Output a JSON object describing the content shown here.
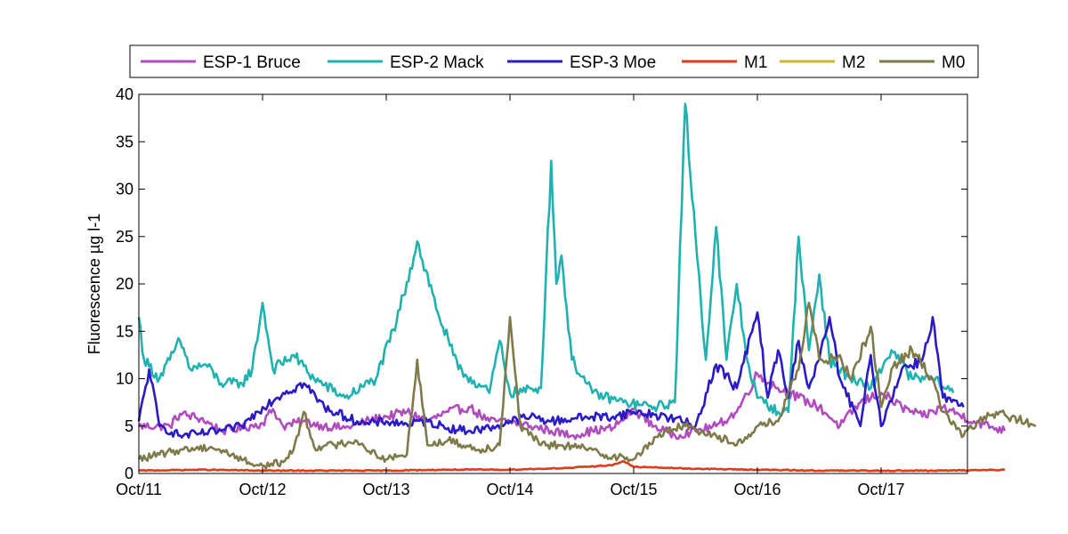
{
  "chart_data": {
    "type": "line",
    "title": "",
    "xlabel": "",
    "ylabel": "Fluorescence µg l-1",
    "xlim": [
      "2012-10-11",
      "2012-10-18 06:00"
    ],
    "ylim": [
      0,
      40
    ],
    "x_ticks": [
      "Oct/11",
      "Oct/12",
      "Oct/13",
      "Oct/14",
      "Oct/15",
      "Oct/16",
      "Oct/17"
    ],
    "y_ticks": [
      "0",
      "5",
      "10",
      "15",
      "20",
      "25",
      "30",
      "35",
      "40"
    ],
    "grid": false,
    "legend": {
      "placement": "top",
      "orientation": "horizontal"
    },
    "series": [
      {
        "name": "ESP-1 Bruce",
        "color": "#b04cbd",
        "points": [
          [
            "Oct/11 00:00",
            5
          ],
          [
            "Oct/11 06:00",
            5
          ],
          [
            "Oct/11 08:00",
            6.3
          ],
          [
            "Oct/11 12:00",
            5.8
          ],
          [
            "Oct/11 16:00",
            4.5
          ],
          [
            "Oct/11 20:00",
            4.8
          ],
          [
            "Oct/12 00:00",
            5.3
          ],
          [
            "Oct/12 02:00",
            6.8
          ],
          [
            "Oct/12 04:00",
            5
          ],
          [
            "Oct/12 08:00",
            5.5
          ],
          [
            "Oct/12 12:00",
            5
          ],
          [
            "Oct/12 16:00",
            4.8
          ],
          [
            "Oct/12 20:00",
            5.5
          ],
          [
            "Oct/13 00:00",
            6
          ],
          [
            "Oct/13 04:00",
            6.5
          ],
          [
            "Oct/13 08:00",
            5.5
          ],
          [
            "Oct/13 12:00",
            6.5
          ],
          [
            "Oct/13 16:00",
            7
          ],
          [
            "Oct/13 20:00",
            5.5
          ],
          [
            "Oct/14 00:00",
            5.5
          ],
          [
            "Oct/14 04:00",
            5
          ],
          [
            "Oct/14 08:00",
            4.5
          ],
          [
            "Oct/14 12:00",
            4
          ],
          [
            "Oct/14 16:00",
            4.5
          ],
          [
            "Oct/14 20:00",
            4.8
          ],
          [
            "Oct/15 00:00",
            6.8
          ],
          [
            "Oct/15 04:00",
            5
          ],
          [
            "Oct/15 08:00",
            4
          ],
          [
            "Oct/15 12:00",
            4.5
          ],
          [
            "Oct/15 16:00",
            5
          ],
          [
            "Oct/15 20:00",
            6.5
          ],
          [
            "Oct/16 00:00",
            10.5
          ],
          [
            "Oct/16 04:00",
            9
          ],
          [
            "Oct/16 08:00",
            8
          ],
          [
            "Oct/16 12:00",
            7
          ],
          [
            "Oct/16 16:00",
            5
          ],
          [
            "Oct/16 20:00",
            7.5
          ],
          [
            "Oct/17 00:00",
            8.5
          ],
          [
            "Oct/17 04:00",
            7
          ],
          [
            "Oct/17 08:00",
            6
          ],
          [
            "Oct/17 12:00",
            7
          ],
          [
            "Oct/17 18:00",
            5.5
          ],
          [
            "Oct/18 00:00",
            4.5
          ]
        ]
      },
      {
        "name": "ESP-2 Mack",
        "color": "#20b2b0",
        "points": [
          [
            "Oct/11 00:00",
            16.5
          ],
          [
            "Oct/11 01:00",
            12
          ],
          [
            "Oct/11 04:00",
            10
          ],
          [
            "Oct/11 06:00",
            12
          ],
          [
            "Oct/11 08:00",
            14
          ],
          [
            "Oct/11 10:00",
            11
          ],
          [
            "Oct/11 13:00",
            11.5
          ],
          [
            "Oct/11 16:00",
            9.5
          ],
          [
            "Oct/11 20:00",
            9.5
          ],
          [
            "Oct/11 22:00",
            11
          ],
          [
            "Oct/12 00:00",
            18
          ],
          [
            "Oct/12 02:00",
            11
          ],
          [
            "Oct/12 06:00",
            12.5
          ],
          [
            "Oct/12 10:00",
            10
          ],
          [
            "Oct/12 16:00",
            8
          ],
          [
            "Oct/12 22:00",
            10
          ],
          [
            "Oct/13 02:00",
            16
          ],
          [
            "Oct/13 06:00",
            24.5
          ],
          [
            "Oct/13 10:00",
            17
          ],
          [
            "Oct/13 14:00",
            11
          ],
          [
            "Oct/13 20:00",
            8.5
          ],
          [
            "Oct/13 22:00",
            14
          ],
          [
            "Oct/14 00:00",
            8.5
          ],
          [
            "Oct/14 06:00",
            9
          ],
          [
            "Oct/14 08:00",
            33
          ],
          [
            "Oct/14 09:00",
            20
          ],
          [
            "Oct/14 10:00",
            23
          ],
          [
            "Oct/14 12:00",
            12
          ],
          [
            "Oct/14 16:00",
            8.5
          ],
          [
            "Oct/14 22:00",
            7.5
          ],
          [
            "Oct/15 04:00",
            7
          ],
          [
            "Oct/15 08:00",
            7.5
          ],
          [
            "Oct/15 10:00",
            39
          ],
          [
            "Oct/15 12:00",
            25
          ],
          [
            "Oct/15 14:00",
            12
          ],
          [
            "Oct/15 16:00",
            26
          ],
          [
            "Oct/15 18:00",
            12
          ],
          [
            "Oct/15 20:00",
            20
          ],
          [
            "Oct/15 22:00",
            12
          ],
          [
            "Oct/16 00:00",
            8
          ],
          [
            "Oct/16 04:00",
            6.5
          ],
          [
            "Oct/16 06:00",
            6.5
          ],
          [
            "Oct/16 08:00",
            25
          ],
          [
            "Oct/16 10:00",
            13
          ],
          [
            "Oct/16 12:00",
            21
          ],
          [
            "Oct/16 14:00",
            12
          ],
          [
            "Oct/16 18:00",
            10
          ],
          [
            "Oct/16 22:00",
            9
          ],
          [
            "Oct/17 02:00",
            13
          ],
          [
            "Oct/17 06:00",
            10
          ],
          [
            "Oct/17 10:00",
            10
          ],
          [
            "Oct/17 14:00",
            8.5
          ]
        ]
      },
      {
        "name": "ESP-3 Moe",
        "color": "#2a1bc4",
        "points": [
          [
            "Oct/11 00:00",
            5.5
          ],
          [
            "Oct/11 02:00",
            11
          ],
          [
            "Oct/11 04:00",
            5
          ],
          [
            "Oct/11 08:00",
            4
          ],
          [
            "Oct/11 12:00",
            4.2
          ],
          [
            "Oct/11 16:00",
            4.5
          ],
          [
            "Oct/11 20:00",
            5
          ],
          [
            "Oct/12 00:00",
            7
          ],
          [
            "Oct/12 04:00",
            8.5
          ],
          [
            "Oct/12 08:00",
            9.5
          ],
          [
            "Oct/12 12:00",
            7
          ],
          [
            "Oct/12 16:00",
            6
          ],
          [
            "Oct/12 20:00",
            5.2
          ],
          [
            "Oct/13 00:00",
            5.5
          ],
          [
            "Oct/13 04:00",
            5.2
          ],
          [
            "Oct/13 08:00",
            5.5
          ],
          [
            "Oct/13 12:00",
            4.8
          ],
          [
            "Oct/13 16:00",
            4.5
          ],
          [
            "Oct/13 20:00",
            4.8
          ],
          [
            "Oct/14 00:00",
            5.5
          ],
          [
            "Oct/14 04:00",
            6
          ],
          [
            "Oct/14 08:00",
            5.5
          ],
          [
            "Oct/14 12:00",
            5.8
          ],
          [
            "Oct/14 16:00",
            6
          ],
          [
            "Oct/14 20:00",
            6
          ],
          [
            "Oct/15 00:00",
            6.5
          ],
          [
            "Oct/15 04:00",
            6.2
          ],
          [
            "Oct/15 08:00",
            5.8
          ],
          [
            "Oct/15 12:00",
            5
          ],
          [
            "Oct/15 16:00",
            11.5
          ],
          [
            "Oct/15 20:00",
            9
          ],
          [
            "Oct/16 00:00",
            17
          ],
          [
            "Oct/16 02:00",
            8
          ],
          [
            "Oct/16 04:00",
            13
          ],
          [
            "Oct/16 06:00",
            8
          ],
          [
            "Oct/16 08:00",
            14
          ],
          [
            "Oct/16 10:00",
            9
          ],
          [
            "Oct/16 12:00",
            12
          ],
          [
            "Oct/16 14:00",
            16.5
          ],
          [
            "Oct/16 16:00",
            10
          ],
          [
            "Oct/16 20:00",
            5
          ],
          [
            "Oct/16 22:00",
            12.5
          ],
          [
            "Oct/17 00:00",
            5
          ],
          [
            "Oct/17 04:00",
            11
          ],
          [
            "Oct/17 08:00",
            12
          ],
          [
            "Oct/17 10:00",
            16.5
          ],
          [
            "Oct/17 12:00",
            8
          ],
          [
            "Oct/17 16:00",
            7
          ]
        ]
      },
      {
        "name": "M1",
        "color": "#e03a1c",
        "points": [
          [
            "Oct/11 00:00",
            0.3
          ],
          [
            "Oct/11 12:00",
            0.4
          ],
          [
            "Oct/12 00:00",
            0.3
          ],
          [
            "Oct/12 12:00",
            0.3
          ],
          [
            "Oct/13 00:00",
            0.3
          ],
          [
            "Oct/13 12:00",
            0.4
          ],
          [
            "Oct/14 00:00",
            0.4
          ],
          [
            "Oct/14 12:00",
            0.6
          ],
          [
            "Oct/14 20:00",
            0.9
          ],
          [
            "Oct/14 22:00",
            1.3
          ],
          [
            "Oct/15 00:00",
            0.7
          ],
          [
            "Oct/15 06:00",
            0.6
          ],
          [
            "Oct/15 12:00",
            0.5
          ],
          [
            "Oct/16 00:00",
            0.4
          ],
          [
            "Oct/16 12:00",
            0.3
          ],
          [
            "Oct/17 00:00",
            0.3
          ],
          [
            "Oct/17 12:00",
            0.3
          ],
          [
            "Oct/18 00:00",
            0.4
          ]
        ]
      },
      {
        "name": "M2",
        "color": "#c9b62a",
        "points": []
      },
      {
        "name": "M0",
        "color": "#7f7a4a",
        "points": [
          [
            "Oct/11 00:00",
            1.5
          ],
          [
            "Oct/11 04:00",
            2
          ],
          [
            "Oct/11 08:00",
            2.5
          ],
          [
            "Oct/11 14:00",
            2.8
          ],
          [
            "Oct/11 18:00",
            2
          ],
          [
            "Oct/11 22:00",
            1
          ],
          [
            "Oct/12 00:00",
            0.8
          ],
          [
            "Oct/12 04:00",
            1.2
          ],
          [
            "Oct/12 06:00",
            2.5
          ],
          [
            "Oct/12 08:00",
            6.5
          ],
          [
            "Oct/12 10:00",
            2.8
          ],
          [
            "Oct/12 14:00",
            3
          ],
          [
            "Oct/12 18:00",
            3.5
          ],
          [
            "Oct/12 22:00",
            2
          ],
          [
            "Oct/13 00:00",
            1.5
          ],
          [
            "Oct/13 04:00",
            2
          ],
          [
            "Oct/13 06:00",
            12
          ],
          [
            "Oct/13 08:00",
            3
          ],
          [
            "Oct/13 12:00",
            3.5
          ],
          [
            "Oct/13 18:00",
            2.5
          ],
          [
            "Oct/13 22:00",
            3
          ],
          [
            "Oct/14 00:00",
            16.5
          ],
          [
            "Oct/14 02:00",
            5
          ],
          [
            "Oct/14 06:00",
            3
          ],
          [
            "Oct/14 10:00",
            3
          ],
          [
            "Oct/14 16:00",
            2.5
          ],
          [
            "Oct/14 18:00",
            2
          ],
          [
            "Oct/15 00:00",
            1.5
          ],
          [
            "Oct/15 06:00",
            4.5
          ],
          [
            "Oct/15 10:00",
            5
          ],
          [
            "Oct/15 16:00",
            4
          ],
          [
            "Oct/15 20:00",
            3
          ],
          [
            "Oct/16 00:00",
            5
          ],
          [
            "Oct/16 04:00",
            5.5
          ],
          [
            "Oct/16 08:00",
            11
          ],
          [
            "Oct/16 10:00",
            18
          ],
          [
            "Oct/16 12:00",
            12
          ],
          [
            "Oct/16 16:00",
            12.5
          ],
          [
            "Oct/16 18:00",
            10
          ],
          [
            "Oct/16 22:00",
            15.5
          ],
          [
            "Oct/17 00:00",
            7
          ],
          [
            "Oct/17 02:00",
            11
          ],
          [
            "Oct/17 06:00",
            13
          ],
          [
            "Oct/17 10:00",
            10
          ],
          [
            "Oct/17 12:00",
            6.5
          ],
          [
            "Oct/17 16:00",
            4
          ],
          [
            "Oct/17 20:00",
            6
          ],
          [
            "Oct/18 00:00",
            6.2
          ],
          [
            "Oct/18 06:00",
            5
          ]
        ]
      }
    ]
  }
}
